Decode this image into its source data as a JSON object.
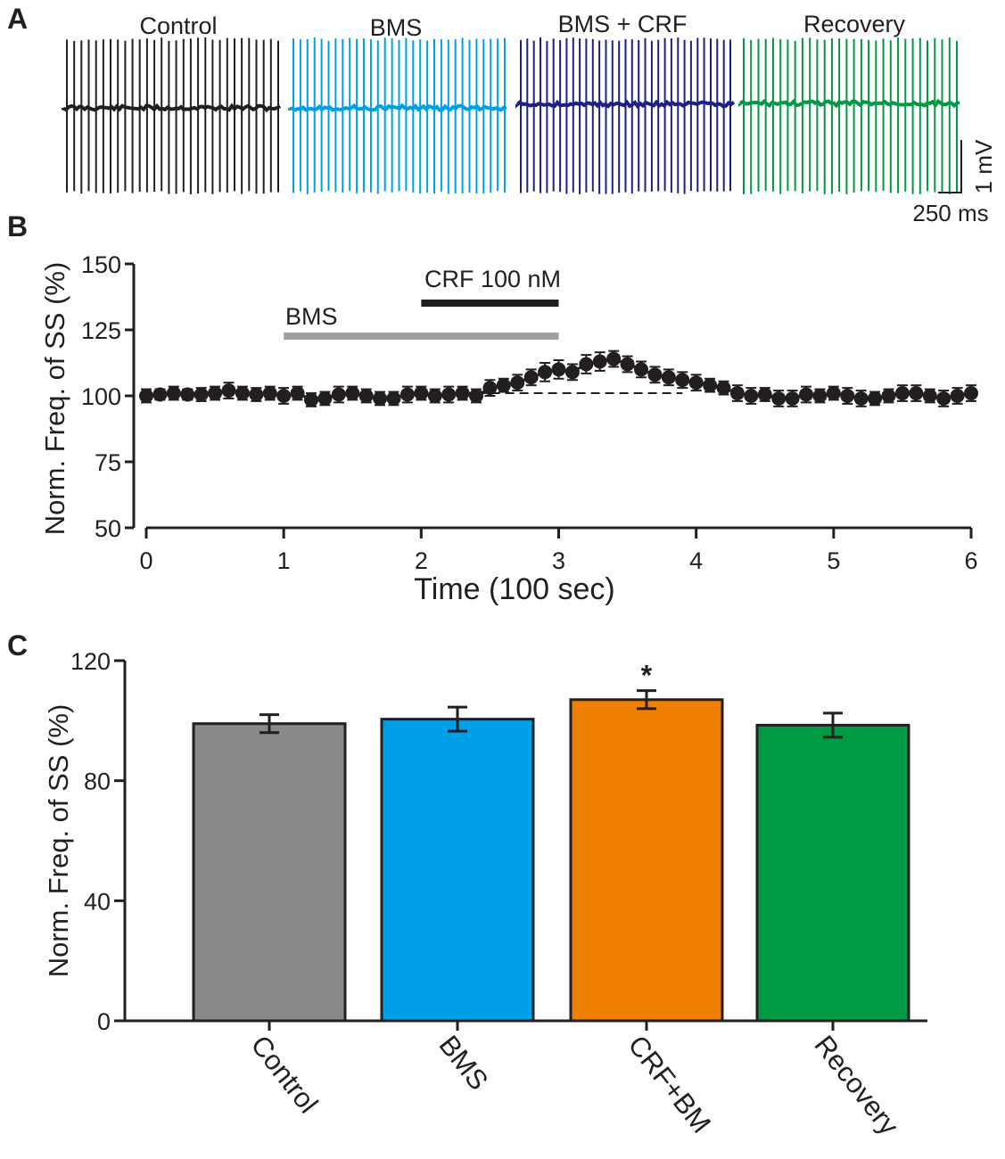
{
  "panels": {
    "a": "A",
    "b": "B",
    "c": "C"
  },
  "colors": {
    "axis": "#231f20",
    "control": "#231f20",
    "bms": "#00a0e9",
    "bms_crf": "#1d2088",
    "recovery": "#009944",
    "bar_control": "#898989",
    "bar_bms": "#00a0e9",
    "bar_crf_bms": "#ee7f00",
    "bar_recovery": "#009944",
    "bms_bar": "#a0a0a0",
    "crf_bar": "#231f20"
  },
  "traces": {
    "titles": [
      "Control",
      "BMS",
      "BMS + CRF",
      "Recovery"
    ],
    "scale_voltage": "1 mV",
    "scale_time": "250 ms"
  },
  "chart_data": [
    {
      "type": "line",
      "panel": "B",
      "title": "",
      "xlabel": "Time (100 sec)",
      "ylabel": "Norm.  Freq. of SS (%)",
      "xlim": [
        0,
        6
      ],
      "ylim": [
        50,
        150
      ],
      "xticks": [
        "0",
        "1",
        "2",
        "3",
        "4",
        "5",
        "6"
      ],
      "yticks": [
        "50",
        "75",
        "100",
        "125",
        "150"
      ],
      "baseline": 100,
      "drug_bars": [
        {
          "label": "BMS",
          "start": 1,
          "end": 3
        },
        {
          "label": "CRF 100 nM",
          "start": 2,
          "end": 3
        }
      ],
      "series": [
        {
          "name": "Norm. Freq. of SS",
          "x": [
            0,
            0.1,
            0.2,
            0.3,
            0.4,
            0.5,
            0.6,
            0.7,
            0.8,
            0.9,
            1.0,
            1.1,
            1.2,
            1.3,
            1.4,
            1.5,
            1.6,
            1.7,
            1.8,
            1.9,
            2.0,
            2.1,
            2.2,
            2.3,
            2.4,
            2.5,
            2.6,
            2.7,
            2.8,
            2.9,
            3.0,
            3.1,
            3.2,
            3.3,
            3.4,
            3.5,
            3.6,
            3.7,
            3.8,
            3.9,
            4.0,
            4.1,
            4.2,
            4.3,
            4.4,
            4.5,
            4.6,
            4.7,
            4.8,
            4.9,
            5.0,
            5.1,
            5.2,
            5.3,
            5.4,
            5.5,
            5.6,
            5.7,
            5.8,
            5.9,
            6.0
          ],
          "y": [
            100,
            100.5,
            101,
            100.5,
            100.5,
            101,
            102,
            101,
            100.5,
            101,
            100,
            101,
            98.5,
            99,
            100.5,
            101,
            100,
            99,
            99,
            100.5,
            101,
            100,
            100.5,
            101,
            100,
            103,
            104,
            105,
            107,
            109,
            110,
            109,
            112,
            113,
            114,
            112,
            110,
            108,
            107,
            106,
            105,
            104,
            103,
            101,
            100,
            100.5,
            99,
            99,
            100.5,
            100,
            101,
            100,
            99,
            99,
            100,
            101,
            101,
            100,
            99,
            100,
            101
          ],
          "error": [
            2.5,
            2.0,
            2.5,
            2.0,
            2.5,
            2.5,
            3.0,
            2.5,
            2.5,
            2.5,
            3.0,
            2.5,
            2.5,
            2.5,
            3.0,
            2.5,
            2.5,
            2.5,
            2.5,
            3.0,
            2.5,
            2.5,
            3.0,
            2.5,
            2.5,
            3.0,
            2.5,
            3.0,
            3.0,
            3.5,
            3.5,
            3.0,
            3.5,
            3.5,
            3.0,
            3.0,
            3.0,
            3.0,
            3.0,
            3.0,
            3.0,
            2.5,
            2.5,
            3.0,
            3.0,
            2.5,
            3.0,
            3.0,
            3.0,
            2.5,
            2.5,
            3.0,
            3.0,
            2.5,
            2.5,
            3.0,
            3.0,
            2.5,
            3.0,
            3.0,
            3.0
          ]
        }
      ]
    },
    {
      "type": "bar",
      "panel": "C",
      "title": "",
      "xlabel": "",
      "ylabel": "Norm. Freq. of SS (%)",
      "ylim": [
        0,
        120
      ],
      "yticks": [
        "0",
        "40",
        "80",
        "120"
      ],
      "categories": [
        "Control",
        "BMS",
        "CRF+BM",
        "Recovery"
      ],
      "values": [
        99,
        100.5,
        107,
        98.5
      ],
      "errors": [
        3,
        4,
        3,
        4
      ],
      "significance": [
        "",
        "",
        "*",
        ""
      ]
    }
  ]
}
